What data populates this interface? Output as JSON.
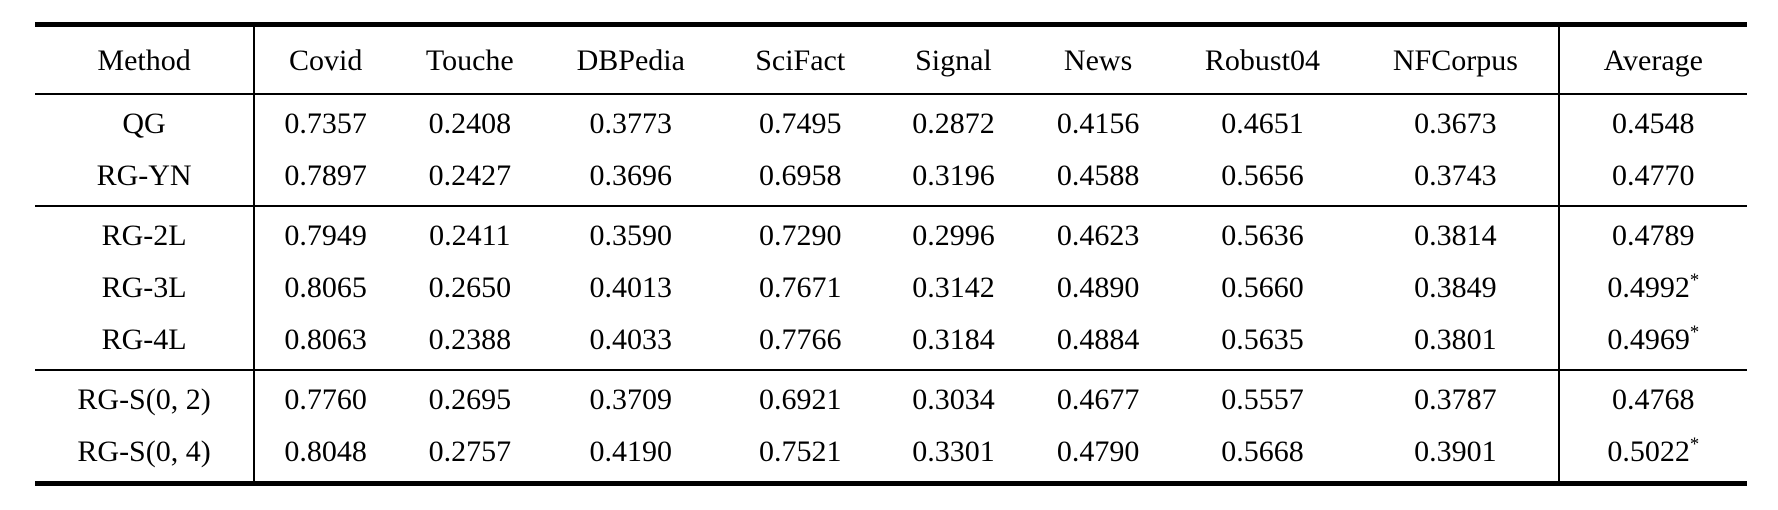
{
  "table": {
    "columns": [
      "Method",
      "Covid",
      "Touche",
      "DBPedia",
      "SciFact",
      "Signal",
      "News",
      "Robust04",
      "NFCorpus",
      "Average"
    ],
    "groups": [
      {
        "rows": [
          {
            "method": "QG",
            "cells": [
              {
                "v": "0.7357"
              },
              {
                "v": "0.2408"
              },
              {
                "v": "0.3773"
              },
              {
                "v": "0.7495"
              },
              {
                "v": "0.2872"
              },
              {
                "v": "0.4156"
              },
              {
                "v": "0.4651"
              },
              {
                "v": "0.3673"
              },
              {
                "v": "0.4548"
              }
            ]
          },
          {
            "method": "RG-YN",
            "cells": [
              {
                "v": "0.7897"
              },
              {
                "v": "0.2427"
              },
              {
                "v": "0.3696"
              },
              {
                "v": "0.6958"
              },
              {
                "v": "0.3196"
              },
              {
                "v": "0.4588"
              },
              {
                "v": "0.5656"
              },
              {
                "v": "0.3743"
              },
              {
                "v": "0.4770"
              }
            ]
          }
        ]
      },
      {
        "rows": [
          {
            "method": "RG-2L",
            "cells": [
              {
                "v": "0.7949"
              },
              {
                "v": "0.2411"
              },
              {
                "v": "0.3590"
              },
              {
                "v": "0.7290"
              },
              {
                "v": "0.2996"
              },
              {
                "v": "0.4623"
              },
              {
                "v": "0.5636"
              },
              {
                "v": "0.3814"
              },
              {
                "v": "0.4789"
              }
            ]
          },
          {
            "method": "RG-3L",
            "cells": [
              {
                "v": "0.8065",
                "b": true
              },
              {
                "v": "0.2650"
              },
              {
                "v": "0.4013"
              },
              {
                "v": "0.7671"
              },
              {
                "v": "0.3142"
              },
              {
                "v": "0.4890",
                "b": true
              },
              {
                "v": "0.5660"
              },
              {
                "v": "0.3849"
              },
              {
                "v": "0.4992",
                "sup": "*"
              }
            ]
          },
          {
            "method": "RG-4L",
            "cells": [
              {
                "v": "0.8063"
              },
              {
                "v": "0.2388"
              },
              {
                "v": "0.4033"
              },
              {
                "v": "0.7766",
                "b": true
              },
              {
                "v": "0.3184"
              },
              {
                "v": "0.4884"
              },
              {
                "v": "0.5635"
              },
              {
                "v": "0.3801"
              },
              {
                "v": "0.4969",
                "sup": "*"
              }
            ]
          }
        ]
      },
      {
        "rows": [
          {
            "method": "RG-S(0, 2)",
            "cells": [
              {
                "v": "0.7760"
              },
              {
                "v": "0.2695"
              },
              {
                "v": "0.3709"
              },
              {
                "v": "0.6921"
              },
              {
                "v": "0.3034"
              },
              {
                "v": "0.4677"
              },
              {
                "v": "0.5557"
              },
              {
                "v": "0.3787"
              },
              {
                "v": "0.4768"
              }
            ]
          },
          {
            "method": "RG-S(0, 4)",
            "cells": [
              {
                "v": "0.8048"
              },
              {
                "v": "0.2757",
                "b": true
              },
              {
                "v": "0.4190",
                "b": true
              },
              {
                "v": "0.7521"
              },
              {
                "v": "0.3301",
                "b": true
              },
              {
                "v": "0.4790"
              },
              {
                "v": "0.5668",
                "b": true
              },
              {
                "v": "0.3901",
                "b": true
              },
              {
                "v": "0.5022",
                "b": true,
                "sup": "*"
              }
            ]
          }
        ]
      }
    ]
  }
}
